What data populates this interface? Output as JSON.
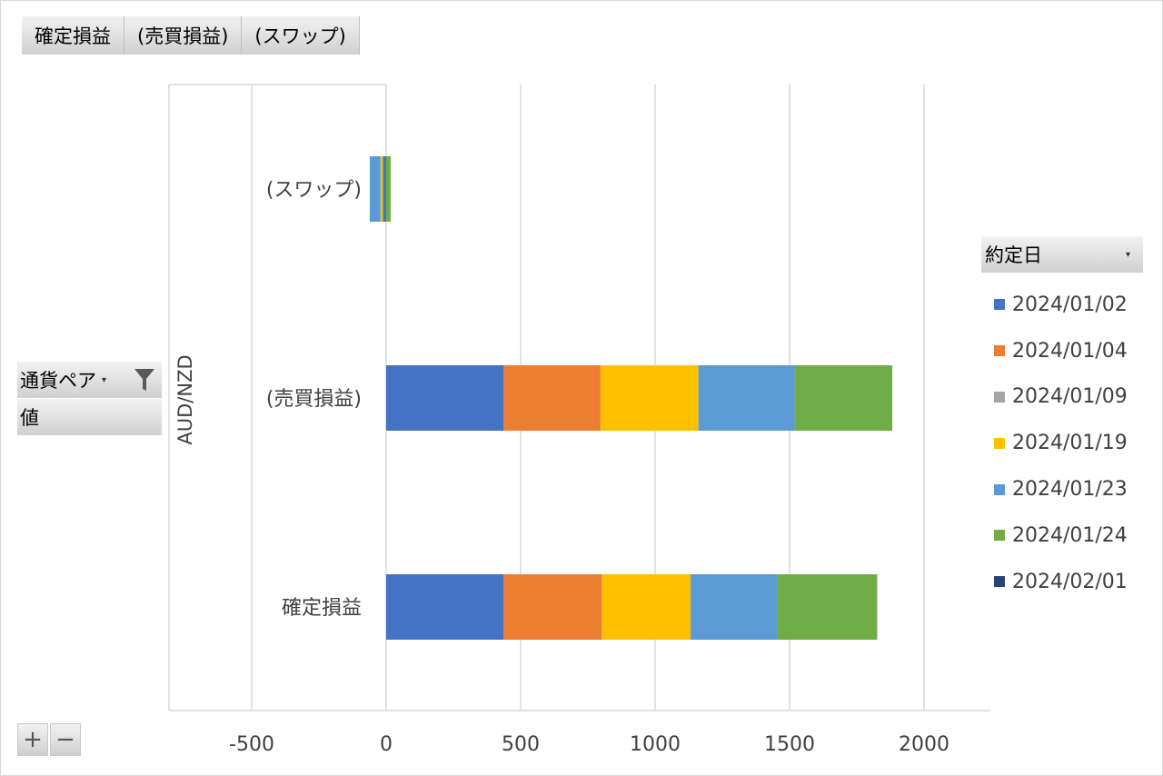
{
  "value_field_buttons": [
    "確定損益",
    "(売買損益)",
    "(スワップ)"
  ],
  "axis_fields": {
    "currency_pair": "通貨ペア",
    "values": "値"
  },
  "legend_field": "約定日",
  "zoom": {
    "plus": "+",
    "minus": "−"
  },
  "icons": {
    "filter": "funnel-icon",
    "dropdown": "dropdown-arrow-icon"
  },
  "colors": {
    "gridline": "#d9d9d9",
    "field_button": "#d9d9d9",
    "text": "#404040"
  },
  "chart_data": {
    "type": "bar",
    "orientation": "horizontal",
    "stacked": true,
    "group_label": "AUD/NZD",
    "categories": [
      "(スワップ)",
      "(売買損益)",
      "確定損益"
    ],
    "xlim": [
      -500,
      2000
    ],
    "xticks": [
      -500,
      0,
      500,
      1000,
      1500,
      2000
    ],
    "grid": true,
    "legend_position": "right",
    "series": [
      {
        "name": "2024/01/02",
        "color": "#4472c4",
        "values": [
          -12,
          437,
          437
        ]
      },
      {
        "name": "2024/01/04",
        "color": "#ed7d31",
        "values": [
          0,
          360,
          365
        ]
      },
      {
        "name": "2024/01/09",
        "color": "#a5a5a5",
        "values": [
          0,
          0,
          0
        ]
      },
      {
        "name": "2024/01/19",
        "color": "#ffc000",
        "values": [
          -9,
          364,
          330
        ]
      },
      {
        "name": "2024/01/23",
        "color": "#5b9bd5",
        "values": [
          -40,
          358,
          322
        ]
      },
      {
        "name": "2024/01/24",
        "color": "#70ad47",
        "values": [
          17,
          363,
          372
        ]
      },
      {
        "name": "2024/02/01",
        "color": "#264478",
        "values": [
          0,
          0,
          0
        ]
      }
    ]
  }
}
